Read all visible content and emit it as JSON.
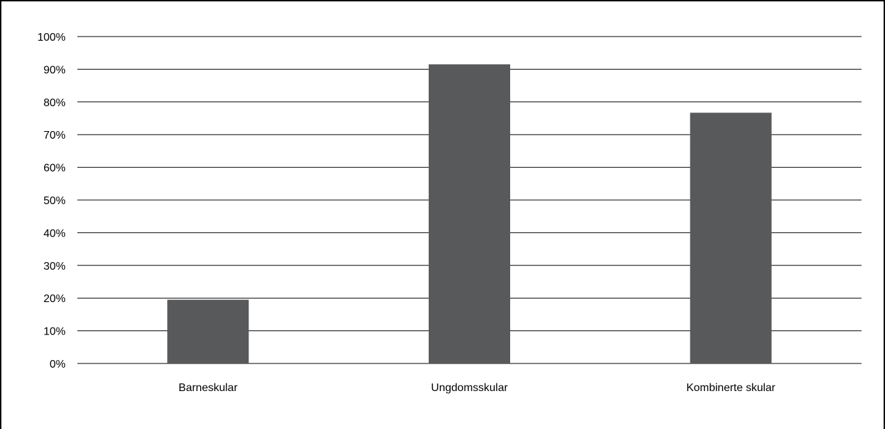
{
  "chart_data": {
    "type": "bar",
    "categories": [
      "Barneskular",
      "Ungdomsskular",
      "Kombinerte skular"
    ],
    "values": [
      19.5,
      91.5,
      76.7
    ],
    "ylim": [
      0,
      100
    ],
    "yticks": [
      "0%",
      "10%",
      "20%",
      "30%",
      "40%",
      "50%",
      "60%",
      "70%",
      "80%",
      "90%",
      "100%"
    ],
    "grid": true,
    "bar_color": "#58595b"
  }
}
